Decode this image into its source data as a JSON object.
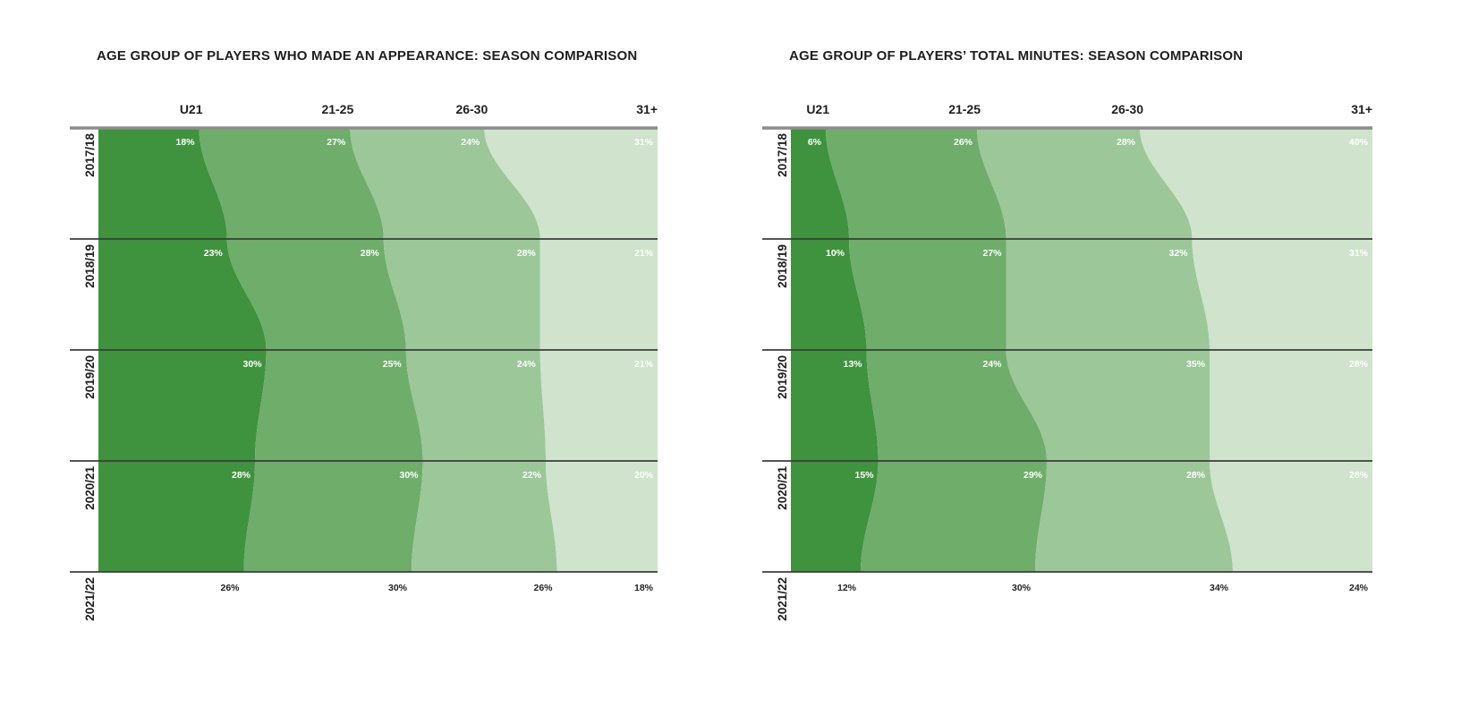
{
  "page": {
    "background": "#ffffff"
  },
  "palette": {
    "band_colors": [
      "#3f923e",
      "#6ead6a",
      "#9cc799",
      "#cfe3cd"
    ],
    "gridline_color": "#3d3d3d",
    "top_gridline_color": "#8c8c8c",
    "value_label_color": "#ffffff",
    "outside_label_color": "#222222",
    "text_color": "#1e1e1e"
  },
  "age_groups": [
    "U21",
    "21-25",
    "26-30",
    "31+"
  ],
  "seasons": [
    "2017/18",
    "2018/19",
    "2019/20",
    "2020/21",
    "2021/22"
  ],
  "chart_data": [
    {
      "type": "area",
      "title": "AGE GROUP OF PLAYERS WHO MADE AN APPEARANCE: SEASON COMPARISON",
      "subtitle": "",
      "orientation": "rows-top-to-bottom",
      "unit": "%",
      "grid": true,
      "legend_position": "column-headers-top",
      "categories": [
        "U21",
        "21-25",
        "26-30",
        "31+"
      ],
      "rows": [
        "2017/18",
        "2018/19",
        "2019/20",
        "2020/21",
        "2021/22"
      ],
      "series": [
        {
          "name": "U21",
          "values": [
            18,
            23,
            30,
            28,
            26
          ]
        },
        {
          "name": "21-25",
          "values": [
            27,
            28,
            25,
            30,
            30
          ]
        },
        {
          "name": "26-30",
          "values": [
            24,
            28,
            24,
            22,
            26
          ]
        },
        {
          "name": "31+",
          "values": [
            31,
            21,
            21,
            20,
            18
          ]
        }
      ],
      "row_totals": [
        100,
        100,
        100,
        100,
        100
      ],
      "value_labels_shown": true
    },
    {
      "type": "area",
      "title": "AGE GROUP OF PLAYERS’ TOTAL MINUTES: SEASON COMPARISON",
      "subtitle": "",
      "orientation": "rows-top-to-bottom",
      "unit": "%",
      "grid": true,
      "legend_position": "column-headers-top",
      "categories": [
        "U21",
        "21-25",
        "26-30",
        "31+"
      ],
      "rows": [
        "2017/18",
        "2018/19",
        "2019/20",
        "2020/21",
        "2021/22"
      ],
      "series": [
        {
          "name": "U21",
          "values": [
            6,
            10,
            13,
            15,
            12
          ]
        },
        {
          "name": "21-25",
          "values": [
            26,
            27,
            24,
            29,
            30
          ]
        },
        {
          "name": "26-30",
          "values": [
            28,
            32,
            35,
            28,
            34
          ]
        },
        {
          "name": "31+",
          "values": [
            40,
            31,
            28,
            28,
            24
          ]
        }
      ],
      "row_totals": [
        100,
        100,
        100,
        100,
        100
      ],
      "value_labels_shown": true
    }
  ]
}
